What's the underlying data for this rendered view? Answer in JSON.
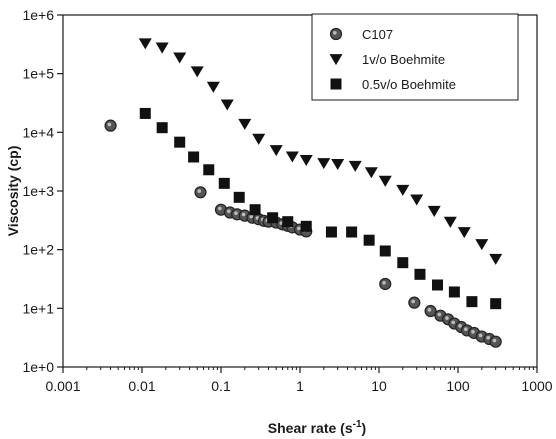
{
  "chart_data": {
    "type": "scatter",
    "title": "",
    "xlabel": "Shear rate (s",
    "xlabel_sup": "-1",
    "xlabel_close": ")",
    "ylabel": "Viscosity (cp)",
    "xscale": "log",
    "yscale": "log",
    "xlim": [
      0.001,
      1000
    ],
    "ylim": [
      1,
      1000000
    ],
    "grid": false,
    "legend_position": "top-right",
    "x_tick_labels": [
      "0.001",
      "0.01",
      "0.1",
      "1",
      "10",
      "100",
      "1000"
    ],
    "y_tick_labels": [
      "1e+0",
      "1e+1",
      "1e+2",
      "1e+3",
      "1e+4",
      "1e+5",
      "1e+6"
    ],
    "series": [
      {
        "name": "C107",
        "marker": "circle",
        "color": "#444444",
        "x": [
          0.004,
          0.055,
          0.1,
          0.13,
          0.16,
          0.2,
          0.25,
          0.3,
          0.35,
          0.4,
          0.5,
          0.6,
          0.7,
          0.8,
          1.0,
          1.2,
          12,
          28,
          45,
          60,
          75,
          90,
          110,
          130,
          160,
          200,
          250,
          300
        ],
        "y": [
          13000,
          950,
          480,
          430,
          400,
          380,
          350,
          330,
          310,
          300,
          290,
          270,
          255,
          240,
          220,
          205,
          26,
          12.5,
          9,
          7.5,
          6.5,
          5.5,
          4.8,
          4.2,
          3.8,
          3.3,
          3.0,
          2.7
        ]
      },
      {
        "name": "1v/o Boehmite",
        "marker": "triangle-down",
        "color": "#111111",
        "x": [
          0.011,
          0.018,
          0.03,
          0.05,
          0.08,
          0.12,
          0.2,
          0.3,
          0.5,
          0.8,
          1.2,
          2,
          3,
          5,
          8,
          12,
          20,
          30,
          50,
          80,
          120,
          200,
          300
        ],
        "y": [
          330000,
          280000,
          190000,
          110000,
          60000,
          30000,
          14000,
          7800,
          5000,
          3900,
          3400,
          3000,
          2900,
          2700,
          2100,
          1500,
          1050,
          720,
          460,
          300,
          200,
          125,
          70
        ]
      },
      {
        "name": "0.5v/o Boehmite",
        "marker": "square",
        "color": "#111111",
        "x": [
          0.011,
          0.018,
          0.03,
          0.045,
          0.07,
          0.11,
          0.17,
          0.27,
          0.45,
          0.7,
          1.2,
          2.5,
          4.5,
          7.5,
          12,
          20,
          33,
          55,
          90,
          150,
          300
        ],
        "y": [
          21000,
          12000,
          6800,
          3800,
          2300,
          1350,
          780,
          480,
          350,
          300,
          250,
          200,
          200,
          145,
          95,
          60,
          38,
          25,
          19,
          13,
          12
        ]
      }
    ]
  }
}
